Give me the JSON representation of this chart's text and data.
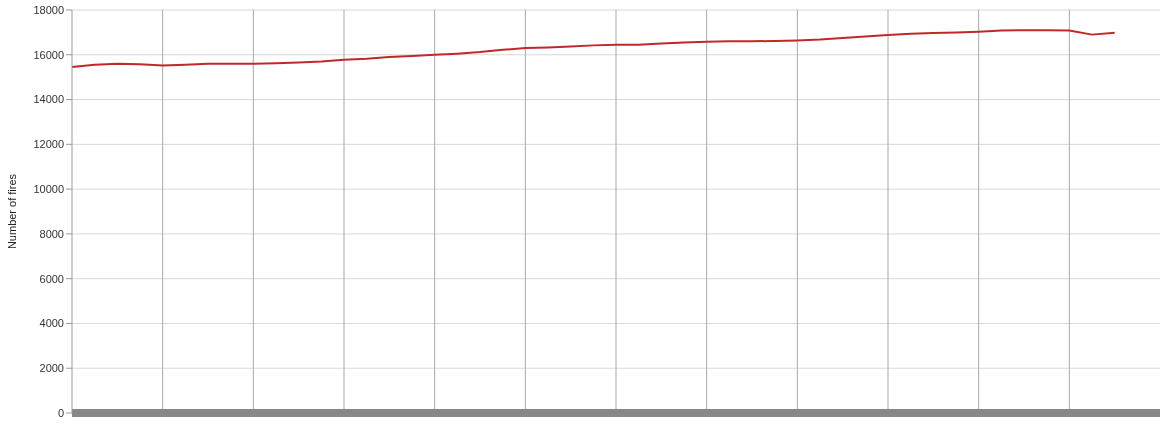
{
  "chart_data": {
    "type": "line",
    "ylabel": "Number of fires",
    "categories": [
      null,
      null,
      null,
      null,
      null,
      null,
      null,
      null,
      null,
      null,
      null,
      null,
      null,
      null,
      null,
      null,
      null,
      null,
      null,
      null,
      null,
      null,
      null,
      null,
      null,
      null,
      null,
      null,
      null,
      null,
      null,
      null,
      null,
      null,
      null,
      null,
      null,
      null,
      null,
      null,
      null,
      null,
      null,
      null,
      null,
      null,
      null
    ],
    "series": [
      {
        "color": "#c0282a",
        "values": [
          15450,
          15550,
          15600,
          15580,
          15520,
          15560,
          15600,
          15600,
          15600,
          15620,
          15650,
          15700,
          15780,
          15820,
          15900,
          15950,
          16000,
          16050,
          16120,
          16220,
          16300,
          16330,
          16370,
          16420,
          16450,
          16450,
          16500,
          16550,
          16580,
          16600,
          16600,
          16620,
          16640,
          16680,
          16750,
          16820,
          16880,
          16940,
          16970,
          17000,
          17030,
          17080,
          17100,
          17100,
          17080,
          16900,
          16980
        ]
      }
    ],
    "ylim": [
      0,
      18000
    ],
    "yticks": [
      0,
      2000,
      4000,
      6000,
      8000,
      10000,
      12000,
      14000,
      16000,
      18000
    ],
    "grid": true,
    "tick_labels": "y",
    "marker": "none",
    "line_style": "solid"
  }
}
